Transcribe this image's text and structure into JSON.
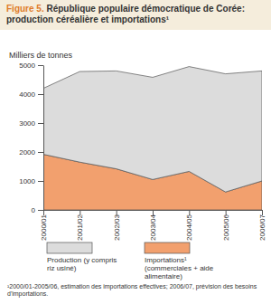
{
  "chart_data": {
    "type": "area",
    "stacked": true,
    "title": "Figure 5. République populaire démocratique de Corée: production céréalière et importations¹",
    "y_label": "Milliers de tonnes",
    "categories": [
      "2000/01",
      "2001/02",
      "2002/03",
      "2003/04",
      "2004/05",
      "2005/06",
      "2006/07"
    ],
    "series": [
      {
        "name": "Production (y compris riz usiné)",
        "color": "#dcdcdc",
        "values": [
          2280,
          3130,
          3380,
          3530,
          3620,
          4080,
          3800
        ]
      },
      {
        "name": "Importations¹ (commerciales + aide alimentaire)",
        "color": "#f2a06e",
        "values": [
          1920,
          1650,
          1420,
          1050,
          1330,
          620,
          1000
        ]
      }
    ],
    "ylim": [
      0,
      5000
    ],
    "yticks": [
      0,
      1000,
      2000,
      3000,
      4000,
      5000
    ],
    "annotations": [
      "¹2000/01-2005/06, estimation des importations effectives; 2006/07, prévision des besoins d'importations."
    ]
  }
}
